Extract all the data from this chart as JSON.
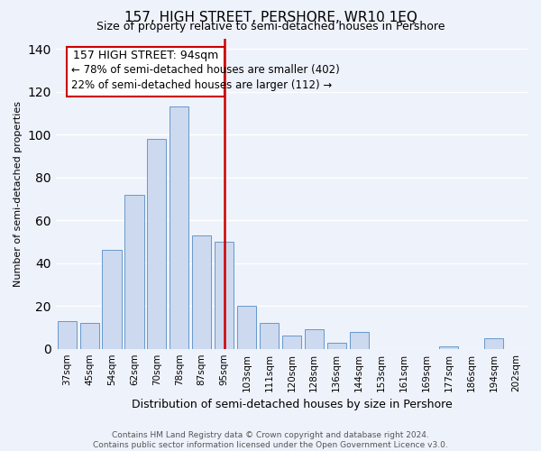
{
  "title": "157, HIGH STREET, PERSHORE, WR10 1EQ",
  "subtitle": "Size of property relative to semi-detached houses in Pershore",
  "xlabel": "Distribution of semi-detached houses by size in Pershore",
  "ylabel": "Number of semi-detached properties",
  "categories": [
    "37sqm",
    "45sqm",
    "54sqm",
    "62sqm",
    "70sqm",
    "78sqm",
    "87sqm",
    "95sqm",
    "103sqm",
    "111sqm",
    "120sqm",
    "128sqm",
    "136sqm",
    "144sqm",
    "153sqm",
    "161sqm",
    "169sqm",
    "177sqm",
    "186sqm",
    "194sqm",
    "202sqm"
  ],
  "values": [
    13,
    12,
    46,
    72,
    98,
    113,
    53,
    50,
    20,
    12,
    6,
    9,
    3,
    8,
    0,
    0,
    0,
    1,
    0,
    5,
    0
  ],
  "bar_color": "#ccd9ee",
  "bar_edge_color": "#6699cc",
  "marker_label": "157 HIGH STREET: 94sqm",
  "marker_line_color": "#cc0000",
  "annotation_line1": "← 78% of semi-detached houses are smaller (402)",
  "annotation_line2": "22% of semi-detached houses are larger (112) →",
  "annotation_box_edge": "#cc0000",
  "ylim": [
    0,
    145
  ],
  "yticks": [
    0,
    20,
    40,
    60,
    80,
    100,
    120,
    140
  ],
  "footer_line1": "Contains HM Land Registry data © Crown copyright and database right 2024.",
  "footer_line2": "Contains public sector information licensed under the Open Government Licence v3.0.",
  "bg_color": "#eef2fb",
  "plot_bg_color": "#eef2fb",
  "grid_color": "#ffffff",
  "title_fontsize": 11,
  "subtitle_fontsize": 9,
  "ylabel_fontsize": 8,
  "xlabel_fontsize": 9,
  "tick_fontsize": 7.5,
  "annotation_title_fontsize": 9,
  "annotation_text_fontsize": 8.5,
  "footer_fontsize": 6.5
}
